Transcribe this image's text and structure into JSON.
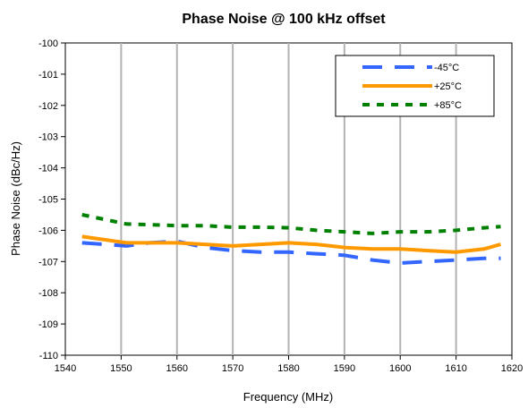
{
  "chart_data": {
    "type": "line",
    "title": "Phase Noise @ 100 kHz offset",
    "xlabel": "Frequency (MHz)",
    "ylabel": "Phase Noise (dBc/Hz)",
    "xlim": [
      1540,
      1620
    ],
    "ylim": [
      -110,
      -100
    ],
    "xticks": [
      "1540",
      "1550",
      "1560",
      "1570",
      "1580",
      "1590",
      "1600",
      "1610",
      "1620"
    ],
    "yticks": [
      "-100",
      "-101",
      "-102",
      "-103",
      "-104",
      "-105",
      "-106",
      "-107",
      "-108",
      "-109",
      "-110"
    ],
    "grid": "vertical",
    "legend_position": "top-right",
    "series": [
      {
        "name": "-45°C",
        "color": "#3366ff",
        "style": "dashed",
        "x": [
          1543,
          1547,
          1551,
          1555,
          1560,
          1565,
          1570,
          1575,
          1580,
          1585,
          1590,
          1595,
          1600,
          1605,
          1610,
          1615,
          1618
        ],
        "y": [
          -106.4,
          -106.45,
          -106.5,
          -106.4,
          -106.35,
          -106.55,
          -106.65,
          -106.7,
          -106.7,
          -106.75,
          -106.8,
          -106.95,
          -107.05,
          -107.0,
          -106.95,
          -106.9,
          -106.9
        ]
      },
      {
        "name": "+25°C",
        "color": "#ff9900",
        "style": "solid",
        "x": [
          1543,
          1547,
          1551,
          1555,
          1560,
          1565,
          1570,
          1575,
          1580,
          1585,
          1590,
          1595,
          1600,
          1605,
          1610,
          1615,
          1618
        ],
        "y": [
          -106.2,
          -106.3,
          -106.4,
          -106.4,
          -106.4,
          -106.45,
          -106.5,
          -106.45,
          -106.4,
          -106.45,
          -106.55,
          -106.6,
          -106.6,
          -106.65,
          -106.7,
          -106.6,
          -106.45
        ]
      },
      {
        "name": "+85°C",
        "color": "#008000",
        "style": "dotted",
        "x": [
          1543,
          1547,
          1551,
          1555,
          1560,
          1565,
          1570,
          1575,
          1580,
          1585,
          1590,
          1595,
          1600,
          1605,
          1610,
          1615,
          1618
        ],
        "y": [
          -105.5,
          -105.65,
          -105.8,
          -105.82,
          -105.85,
          -105.85,
          -105.9,
          -105.9,
          -105.92,
          -106.0,
          -106.05,
          -106.1,
          -106.05,
          -106.05,
          -106.0,
          -105.92,
          -105.88
        ]
      }
    ]
  }
}
